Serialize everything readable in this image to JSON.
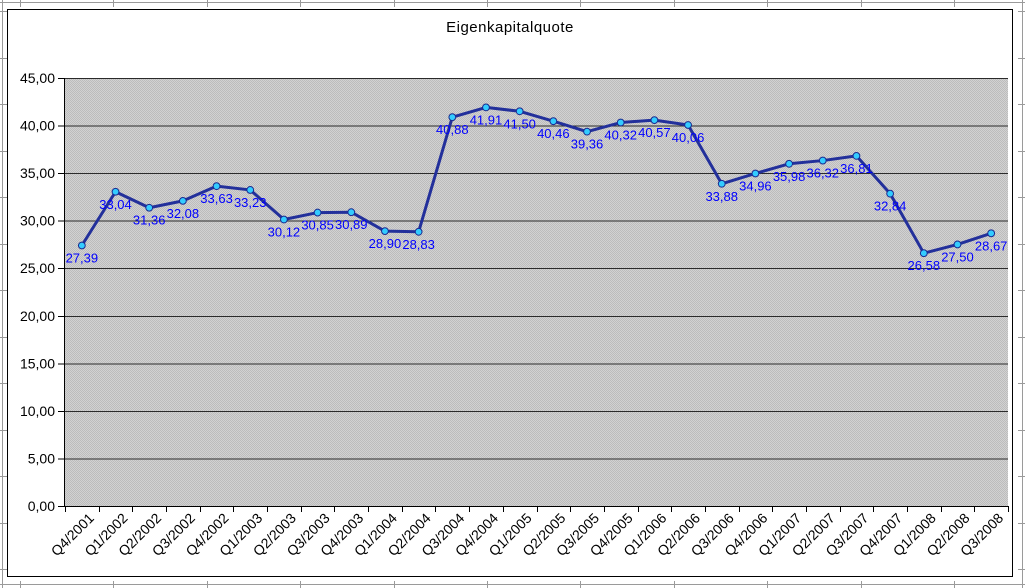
{
  "chart_data": {
    "type": "line",
    "title": "Eigenkapitalquote",
    "xlabel": "",
    "ylabel": "",
    "categories": [
      "Q4/2001",
      "Q1/2002",
      "Q2/2002",
      "Q3/2002",
      "Q4/2002",
      "Q1/2003",
      "Q2/2003",
      "Q3/2003",
      "Q4/2003",
      "Q1/2004",
      "Q2/2004",
      "Q3/2004",
      "Q4/2004",
      "Q1/2005",
      "Q2/2005",
      "Q3/2005",
      "Q4/2005",
      "Q1/2006",
      "Q2/2006",
      "Q3/2006",
      "Q4/2006",
      "Q1/2007",
      "Q2/2007",
      "Q3/2007",
      "Q4/2007",
      "Q1/2008",
      "Q2/2008",
      "Q3/2008"
    ],
    "values": [
      27.39,
      33.04,
      31.36,
      32.08,
      33.63,
      33.23,
      30.12,
      30.85,
      30.89,
      28.9,
      28.83,
      40.88,
      41.91,
      41.5,
      40.46,
      39.36,
      40.32,
      40.57,
      40.06,
      33.88,
      34.96,
      35.98,
      36.32,
      36.81,
      32.84,
      26.58,
      27.5,
      28.67
    ],
    "point_labels": [
      "27,39",
      "33,04",
      "31,36",
      "32,08",
      "33,63",
      "33,23",
      "30,12",
      "30,85",
      "30,89",
      "28,90",
      "28,83",
      "40,88",
      "41,91",
      "41,50",
      "40,46",
      "39,36",
      "40,32",
      "40,57",
      "40,06",
      "33,88",
      "34,96",
      "35,98",
      "36,32",
      "36,81",
      "32,84",
      "26,58",
      "27,50",
      "28,67"
    ],
    "ylim": [
      0,
      45
    ],
    "ytick_step": 5,
    "ytick_labels": [
      "45,00",
      "40,00",
      "35,00",
      "30,00",
      "25,00",
      "20,00",
      "15,00",
      "10,00",
      "5,00",
      "0,00"
    ],
    "grid": true,
    "legend": false,
    "marker": "circle",
    "x_label_rotation_deg": 45,
    "colors": {
      "line": "#23309b",
      "marker_fill": "#33ccff",
      "marker_edge": "#1b2a90",
      "data_label": "#0000ff",
      "axis_text": "#000000",
      "gridline": "#2b2b2b",
      "axis_line": "#000000",
      "plot_bg_base": "#d2d2d2",
      "plot_bg_dot": "#bcbcbc",
      "chart_border": "#000000",
      "sheet_gridline": "#9a9a9a"
    }
  }
}
